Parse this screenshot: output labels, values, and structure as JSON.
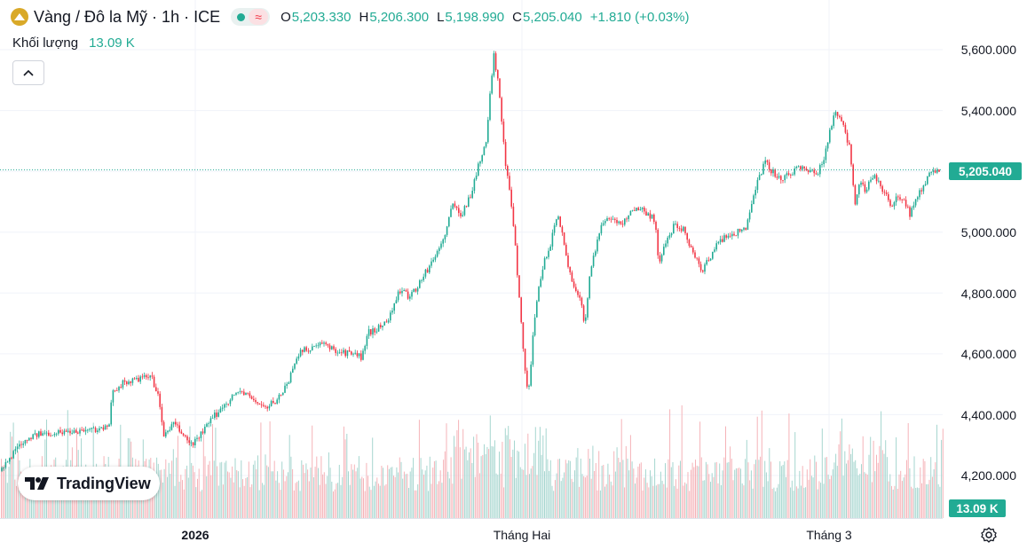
{
  "header": {
    "symbol_title": "Vàng / Đô la Mỹ · 1h · ICE",
    "market_icon": "gold-coin-icon",
    "ohlc": {
      "open_label": "O",
      "open": "5,203.330",
      "high_label": "H",
      "high": "5,206.300",
      "low_label": "L",
      "low": "5,198.990",
      "close_label": "C",
      "close": "5,205.040",
      "change": "+1.810 (+0.03%)"
    }
  },
  "volume_legend": {
    "label": "Khối lượng",
    "value": "13.09 K"
  },
  "logo": {
    "text": "TradingView",
    "icon": "tradingview-logo-icon"
  },
  "colors": {
    "up": "#22ab94",
    "down": "#f23645",
    "up_volume": "#a6d6cf",
    "down_volume": "#f5b3b8",
    "grid": "#f0f3fa",
    "price_line": "#22ab94"
  },
  "chart_data": {
    "type": "candlestick",
    "title": "Vàng / Đô la Mỹ · 1h · ICE",
    "ylabel": "",
    "xlabel": "",
    "ylim": [
      4050,
      5680
    ],
    "yticks": [
      4200,
      4400,
      4600,
      4800,
      5000,
      5200,
      5400,
      5600
    ],
    "ytick_labels": [
      "4,200.000",
      "4,400.000",
      "4,600.000",
      "4,800.000",
      "5,000.000",
      "5,200.000",
      "5,400.000",
      "5,600.000"
    ],
    "xtick_labels": [
      {
        "label": "2026",
        "bold": true
      },
      {
        "label": "Tháng Hai",
        "bold": false
      },
      {
        "label": "Tháng 3",
        "bold": false
      }
    ],
    "last_price": 5205.04,
    "last_price_label": "5,205.040",
    "last_volume_label": "13.09 K",
    "grid": true,
    "price_anchors": [
      [
        0,
        4215
      ],
      [
        8,
        4240
      ],
      [
        20,
        4300
      ],
      [
        35,
        4330
      ],
      [
        55,
        4340
      ],
      [
        75,
        4345
      ],
      [
        95,
        4350
      ],
      [
        115,
        4355
      ],
      [
        124,
        4360
      ],
      [
        126,
        4480
      ],
      [
        140,
        4505
      ],
      [
        155,
        4515
      ],
      [
        170,
        4525
      ],
      [
        178,
        4470
      ],
      [
        184,
        4330
      ],
      [
        195,
        4370
      ],
      [
        205,
        4340
      ],
      [
        215,
        4300
      ],
      [
        225,
        4330
      ],
      [
        240,
        4390
      ],
      [
        255,
        4440
      ],
      [
        270,
        4480
      ],
      [
        285,
        4450
      ],
      [
        300,
        4420
      ],
      [
        315,
        4460
      ],
      [
        325,
        4510
      ],
      [
        335,
        4600
      ],
      [
        350,
        4620
      ],
      [
        365,
        4630
      ],
      [
        380,
        4610
      ],
      [
        395,
        4600
      ],
      [
        408,
        4590
      ],
      [
        415,
        4670
      ],
      [
        430,
        4690
      ],
      [
        440,
        4730
      ],
      [
        450,
        4810
      ],
      [
        460,
        4790
      ],
      [
        470,
        4820
      ],
      [
        480,
        4870
      ],
      [
        490,
        4920
      ],
      [
        500,
        4980
      ],
      [
        510,
        5090
      ],
      [
        520,
        5060
      ],
      [
        530,
        5120
      ],
      [
        540,
        5230
      ],
      [
        548,
        5300
      ],
      [
        556,
        5590
      ],
      [
        561,
        5500
      ],
      [
        566,
        5350
      ],
      [
        570,
        5200
      ],
      [
        575,
        5130
      ],
      [
        580,
        4980
      ],
      [
        585,
        4780
      ],
      [
        590,
        4600
      ],
      [
        595,
        4450
      ],
      [
        600,
        4640
      ],
      [
        606,
        4800
      ],
      [
        612,
        4890
      ],
      [
        620,
        4960
      ],
      [
        628,
        5060
      ],
      [
        633,
        5010
      ],
      [
        640,
        4880
      ],
      [
        648,
        4820
      ],
      [
        655,
        4760
      ],
      [
        659,
        4690
      ],
      [
        665,
        4880
      ],
      [
        672,
        4960
      ],
      [
        680,
        5040
      ],
      [
        690,
        5050
      ],
      [
        700,
        5020
      ],
      [
        710,
        5070
      ],
      [
        720,
        5080
      ],
      [
        730,
        5060
      ],
      [
        738,
        5040
      ],
      [
        742,
        4900
      ],
      [
        750,
        4960
      ],
      [
        760,
        5030
      ],
      [
        770,
        5010
      ],
      [
        780,
        4940
      ],
      [
        790,
        4870
      ],
      [
        800,
        4920
      ],
      [
        810,
        4970
      ],
      [
        820,
        4990
      ],
      [
        830,
        5000
      ],
      [
        840,
        5010
      ],
      [
        848,
        5120
      ],
      [
        855,
        5180
      ],
      [
        862,
        5230
      ],
      [
        870,
        5200
      ],
      [
        880,
        5170
      ],
      [
        890,
        5190
      ],
      [
        900,
        5220
      ],
      [
        910,
        5200
      ],
      [
        920,
        5190
      ],
      [
        928,
        5240
      ],
      [
        935,
        5340
      ],
      [
        940,
        5390
      ],
      [
        946,
        5370
      ],
      [
        952,
        5330
      ],
      [
        958,
        5270
      ],
      [
        963,
        5080
      ],
      [
        967,
        5160
      ],
      [
        975,
        5140
      ],
      [
        985,
        5180
      ],
      [
        995,
        5140
      ],
      [
        1005,
        5080
      ],
      [
        1012,
        5120
      ],
      [
        1020,
        5100
      ],
      [
        1025,
        5060
      ],
      [
        1032,
        5110
      ],
      [
        1040,
        5150
      ],
      [
        1048,
        5190
      ],
      [
        1055,
        5210
      ],
      [
        1060,
        5205
      ]
    ],
    "volume_axis_max_label": "13.09 K"
  }
}
